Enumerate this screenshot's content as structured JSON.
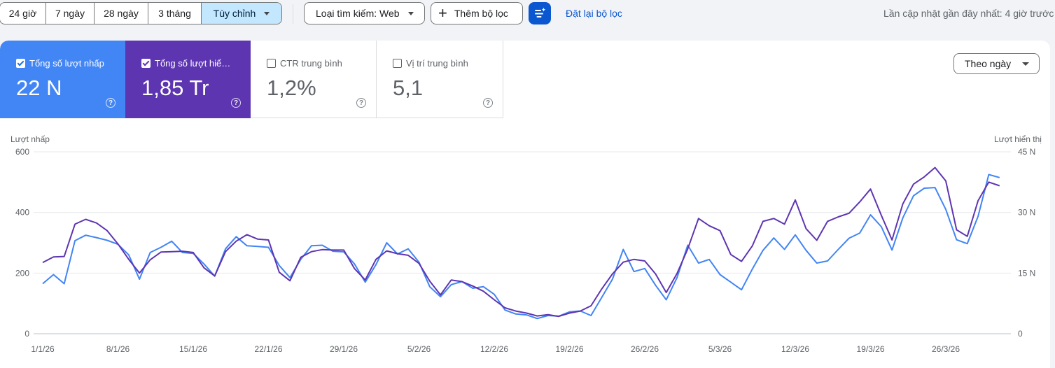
{
  "toolbar": {
    "ranges": [
      "24 giờ",
      "7 ngày",
      "28 ngày",
      "3 tháng",
      "Tùy chỉnh"
    ],
    "search_type": "Loại tìm kiếm: Web",
    "add_filter": "Thêm bộ lọc",
    "reset": "Đặt lại bộ lọc",
    "updated": "Lần cập nhật gần đây nhất: 4 giờ trước"
  },
  "metrics": {
    "clicks": {
      "label": "Tổng số lượt nhấp",
      "value": "22 N",
      "checked": true,
      "color": "#4285f4"
    },
    "impressions": {
      "label": "Tổng số lượt hiển thị",
      "value": "1,85 Tr",
      "checked": true,
      "color": "#5e35b1"
    },
    "ctr": {
      "label": "CTR trung bình",
      "value": "1,2%",
      "checked": false
    },
    "position": {
      "label": "Vị trí trung bình",
      "value": "5,1",
      "checked": false
    }
  },
  "granularity": "Theo ngày",
  "chart_data": {
    "type": "line",
    "left_axis": {
      "label": "Lượt nhấp",
      "ticks": [
        0,
        200,
        400,
        600
      ],
      "range": [
        0,
        600
      ]
    },
    "right_axis": {
      "label": "Lượt hiển thị",
      "ticks": [
        "0",
        "15 N",
        "30 N",
        "45 N"
      ],
      "range": [
        0,
        45000
      ]
    },
    "x_labels": [
      "1/1/26",
      "8/1/26",
      "15/1/26",
      "22/1/26",
      "29/1/26",
      "5/2/26",
      "12/2/26",
      "19/2/26",
      "26/2/26",
      "5/3/26",
      "12/3/26",
      "19/3/26",
      "26/3/26"
    ],
    "grid": true,
    "series": [
      {
        "name": "Lượt nhấp",
        "axis": "left",
        "color": "#4285f4",
        "values": [
          165,
          195,
          165,
          307,
          325,
          317,
          308,
          295,
          260,
          180,
          268,
          285,
          305,
          268,
          265,
          230,
          190,
          280,
          320,
          290,
          288,
          285,
          225,
          185,
          245,
          290,
          292,
          272,
          270,
          230,
          170,
          228,
          300,
          263,
          280,
          236,
          155,
          122,
          162,
          172,
          150,
          155,
          130,
          78,
          65,
          62,
          50,
          60,
          58,
          72,
          75,
          60,
          120,
          180,
          278,
          205,
          215,
          160,
          112,
          185,
          292,
          233,
          245,
          195,
          170,
          145,
          213,
          275,
          316,
          278,
          326,
          275,
          233,
          240,
          278,
          315,
          332,
          392,
          353,
          276,
          382,
          455,
          480,
          482,
          410,
          310,
          297,
          387,
          525,
          515
        ]
      },
      {
        "name": "Lượt hiển thị",
        "axis": "right",
        "color": "#5e35b1",
        "values": [
          17600,
          19000,
          19100,
          27100,
          28300,
          27400,
          25500,
          22200,
          18400,
          15000,
          18300,
          20200,
          20300,
          20400,
          20100,
          16300,
          14300,
          20300,
          22900,
          24500,
          23400,
          23200,
          15200,
          13100,
          18900,
          20300,
          20800,
          20700,
          20700,
          16100,
          13300,
          18400,
          20500,
          19800,
          19400,
          17400,
          13000,
          9600,
          13300,
          12900,
          11800,
          10500,
          8400,
          6400,
          5600,
          5100,
          4400,
          4700,
          4300,
          5100,
          5600,
          6900,
          11100,
          14800,
          17700,
          18400,
          18000,
          14800,
          10200,
          14900,
          21000,
          28500,
          26700,
          25500,
          19600,
          17900,
          21700,
          27800,
          28500,
          27100,
          33100,
          26000,
          23100,
          27800,
          28900,
          29800,
          32600,
          35800,
          29300,
          23200,
          32100,
          37000,
          38800,
          41100,
          37800,
          25700,
          24100,
          32900,
          37500,
          36600
        ]
      }
    ]
  }
}
